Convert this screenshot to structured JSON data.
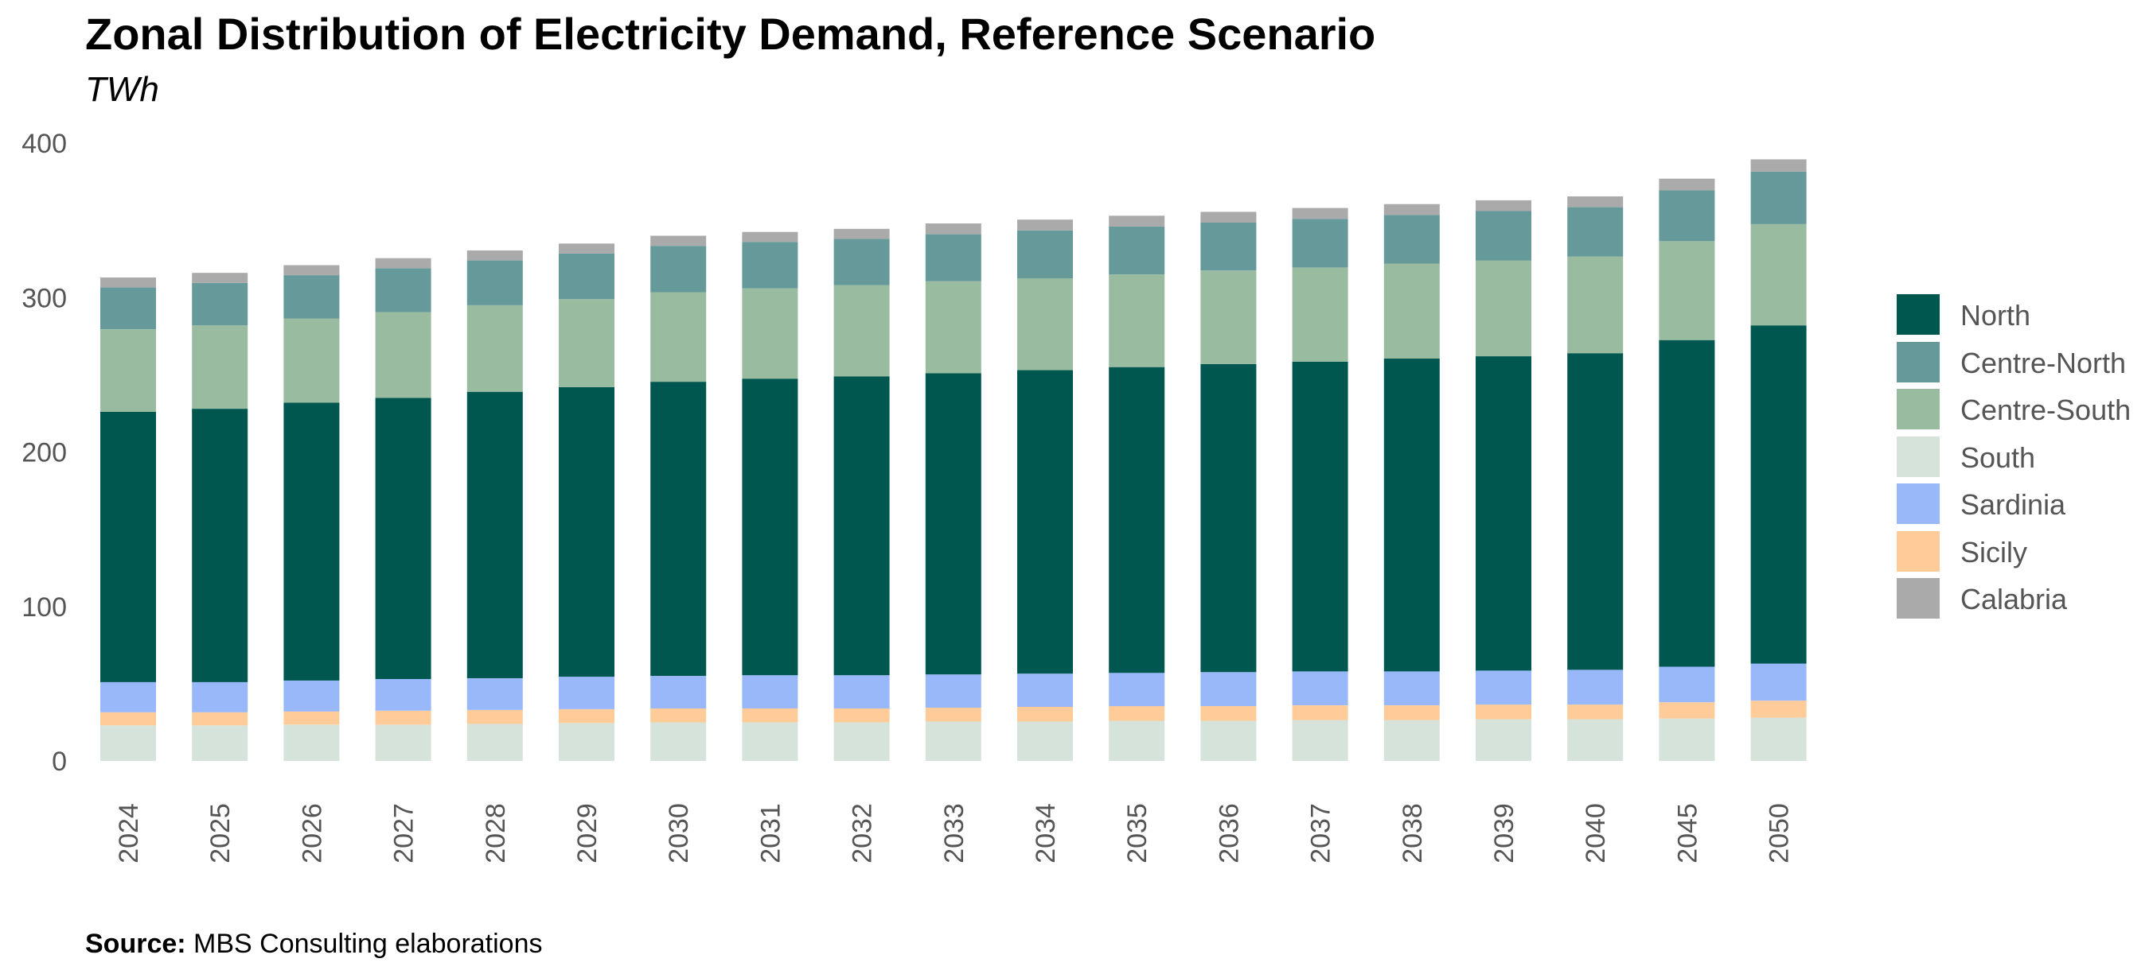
{
  "title": "Zonal Distribution of Electricity Demand, Reference Scenario",
  "subtitle": "TWh",
  "source": {
    "label": "Source:",
    "text": " MBS Consulting elaborations"
  },
  "colors": {
    "North": "#00574f",
    "Centre-North": "#669999",
    "Centre-South": "#99bba0",
    "South": "#d6e3da",
    "Sardinia": "#99b8fa",
    "Sicily": "#ffcc99",
    "Calabria": "#aaaaaa"
  },
  "legend": [
    "North",
    "Centre-North",
    "Centre-South",
    "South",
    "Sardinia",
    "Sicily",
    "Calabria"
  ],
  "chart_data": {
    "type": "bar",
    "stacked": true,
    "title": "Zonal Distribution of Electricity Demand, Reference Scenario",
    "subtitle": "TWh",
    "xlabel": "",
    "ylabel": "",
    "ylim": [
      0,
      400
    ],
    "yticks": [
      0,
      100,
      200,
      300,
      400
    ],
    "grid": false,
    "legend_position": "right",
    "categories": [
      "2024",
      "2025",
      "2026",
      "2027",
      "2028",
      "2029",
      "2030",
      "2031",
      "2032",
      "2033",
      "2034",
      "2035",
      "2036",
      "2037",
      "2038",
      "2039",
      "2040",
      "2045",
      "2050"
    ],
    "series": [
      {
        "name": "South",
        "values": [
          23,
          23,
          23.5,
          23.5,
          24,
          24.5,
          25,
          25,
          25,
          25.5,
          25.5,
          26,
          26,
          26.5,
          26.5,
          27,
          27,
          27.5,
          28
        ]
      },
      {
        "name": "Sicily",
        "values": [
          8.5,
          8.5,
          8.5,
          9,
          9,
          9,
          9,
          9,
          9,
          9,
          9.5,
          9.5,
          9.5,
          9.5,
          9.5,
          9.5,
          9.5,
          10.5,
          11
        ]
      },
      {
        "name": "Sardinia",
        "values": [
          19.5,
          19.5,
          20,
          20.5,
          20.5,
          21,
          21,
          21.5,
          21.5,
          21.5,
          21.5,
          21.5,
          22,
          22,
          22,
          22,
          22.5,
          23,
          24
        ]
      },
      {
        "name": "North",
        "values": [
          175,
          177,
          180,
          182,
          185.5,
          187.5,
          190.5,
          192,
          193.5,
          195,
          196.5,
          198,
          199.5,
          200.5,
          202.5,
          203.5,
          205,
          211.5,
          219
        ]
      },
      {
        "name": "Centre-South",
        "values": [
          53.5,
          54,
          54.5,
          55.5,
          56,
          57,
          58,
          58.5,
          59,
          59.5,
          59.5,
          60,
          60.5,
          61,
          61.5,
          62,
          62.5,
          64,
          65.5
        ]
      },
      {
        "name": "Centre-North",
        "values": [
          27,
          27.5,
          28,
          28.5,
          29,
          29.5,
          30,
          30,
          30,
          30.5,
          31,
          31,
          31,
          31.5,
          31.5,
          32,
          32,
          33,
          34
        ]
      },
      {
        "name": "Calabria",
        "values": [
          6.5,
          6.5,
          6.5,
          6.5,
          6.5,
          6.5,
          6.5,
          6.5,
          6.5,
          7,
          7,
          7,
          7,
          7,
          7,
          7,
          7,
          7.5,
          8
        ]
      }
    ]
  }
}
